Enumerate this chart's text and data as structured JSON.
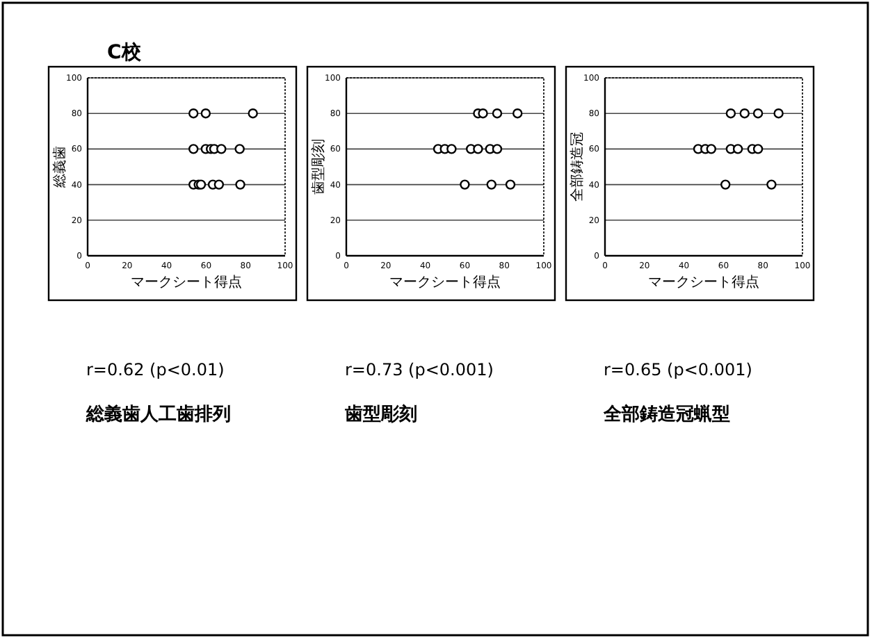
{
  "chart_data": [
    {
      "type": "scatter",
      "title": "C校",
      "xlabel": "マークシート得点",
      "ylabel": "総義歯",
      "xlim": [
        0,
        100
      ],
      "ylim": [
        0,
        100
      ],
      "xticks": [
        0,
        20,
        40,
        60,
        80,
        100
      ],
      "yticks": [
        0,
        20,
        40,
        60,
        80,
        100
      ],
      "grid": "y",
      "marker": "circle",
      "annotations": [
        "r=0.62 (p<0.01)",
        "総義歯人工歯排列"
      ],
      "series": [
        {
          "color": "#000000",
          "x": [
            53.6,
            59.8,
            83.7,
            53.6,
            59.8,
            62.4,
            64.1,
            67.7,
            77,
            53.6,
            56.2,
            57.4,
            63.4,
            66.5,
            77.3
          ],
          "values": [
            80,
            80,
            80,
            60,
            60,
            60,
            60,
            60,
            60,
            40,
            40,
            40,
            40,
            40,
            40
          ]
        }
      ]
    },
    {
      "type": "scatter",
      "xlabel": "マークシート得点",
      "ylabel": "歯型彫刻",
      "xlim": [
        0,
        100
      ],
      "ylim": [
        0,
        100
      ],
      "xticks": [
        0,
        20,
        40,
        60,
        80,
        100
      ],
      "yticks": [
        0,
        20,
        40,
        60,
        80,
        100
      ],
      "grid": "y",
      "marker": "circle",
      "annotations": [
        "r=0.73 (p<0.001)",
        "歯型彫刻"
      ],
      "series": [
        {
          "color": "#000000",
          "x": [
            66.7,
            69.2,
            76.4,
            86.7,
            46.5,
            49.9,
            53.3,
            63.1,
            66.7,
            72.8,
            76.4,
            60,
            73.5,
            83.1
          ],
          "values": [
            80,
            80,
            80,
            80,
            60,
            60,
            60,
            60,
            60,
            60,
            60,
            40,
            40,
            40
          ]
        }
      ]
    },
    {
      "type": "scatter",
      "xlabel": "マークシート得点",
      "ylabel": "全部鋳造冠",
      "xlim": [
        0,
        100
      ],
      "ylim": [
        0,
        100
      ],
      "xticks": [
        0,
        20,
        40,
        60,
        80,
        100
      ],
      "yticks": [
        0,
        20,
        40,
        60,
        80,
        100
      ],
      "grid": "y",
      "marker": "circle",
      "annotations": [
        "r=0.65 (p<0.001)",
        "全部鋳造冠蝋型"
      ],
      "series": [
        {
          "color": "#000000",
          "x": [
            63.7,
            70.7,
            77.5,
            87.9,
            47.2,
            50.8,
            53.8,
            63.7,
            67.3,
            74.6,
            77.5,
            61,
            84.3
          ],
          "values": [
            80,
            80,
            80,
            80,
            60,
            60,
            60,
            60,
            60,
            60,
            60,
            40,
            40
          ]
        }
      ]
    }
  ]
}
